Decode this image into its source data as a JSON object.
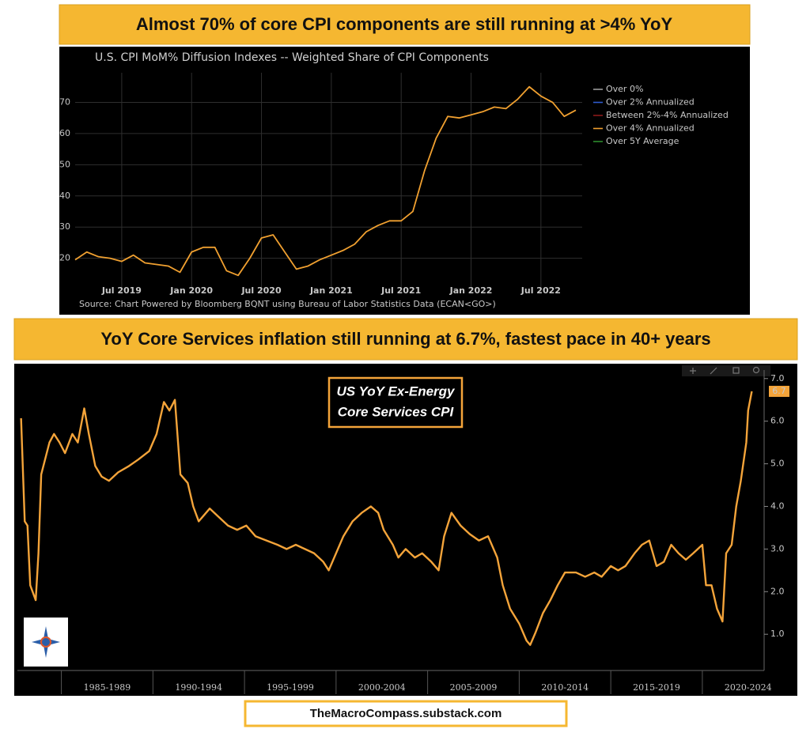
{
  "banners": [
    "Almost 70% of core CPI components are still running at >4% YoY",
    "YoY Core Services inflation still running at 6.7%, fastest pace in 40+ years"
  ],
  "footer": "TheMacroCompass.substack.com",
  "chart_data": [
    {
      "type": "line",
      "title": "U.S. CPI MoM% Diffusion Indexes -- Weighted Share of CPI Components",
      "source": "Source: Chart Powered by Bloomberg BQNT using Bureau of Labor Statistics Data   (ECAN<GO>)",
      "categories": [
        null,
        null,
        null,
        null,
        "Jul 2019",
        null,
        null,
        null,
        null,
        null,
        "Jan 2020",
        null,
        null,
        null,
        null,
        null,
        "Jul 2020",
        null,
        null,
        null,
        null,
        null,
        "Jan 2021",
        null,
        null,
        null,
        null,
        null,
        "Jul 2021",
        null,
        null,
        null,
        null,
        null,
        "Jan 2022",
        null,
        null,
        null,
        null,
        null,
        "Jul 2022",
        null,
        null,
        null
      ],
      "series": [
        {
          "name": "Over 0%",
          "color": "#9a9a9a"
        },
        {
          "name": "Over 2% Annualized",
          "color": "#2f5bd0"
        },
        {
          "name": "Between 2%-4% Annualized",
          "color": "#8b1a1a"
        },
        {
          "name": "Over 4% Annualized",
          "color": "#f0a030",
          "values": [
            19.5,
            22,
            20.5,
            20,
            19,
            21,
            18.5,
            18,
            17.5,
            15.5,
            22,
            23.5,
            23.5,
            16,
            14.5,
            20,
            26.5,
            27.5,
            22,
            16.5,
            17.5,
            19.5,
            21,
            22.5,
            24.5,
            28.5,
            30.5,
            32,
            32,
            35,
            48,
            58.5,
            65.5,
            65,
            66,
            67,
            68.5,
            68,
            71,
            75,
            72,
            70,
            65.5,
            67.5
          ]
        },
        {
          "name": "Over 5Y Average",
          "color": "#2e8b2e"
        }
      ],
      "ylim": [
        9,
        79.5
      ],
      "yticks": [
        20,
        30,
        40,
        50,
        60,
        70
      ],
      "grid": true,
      "legend": "right"
    },
    {
      "type": "line",
      "title": [
        "US YoY Ex-Energy",
        "Core Services CPI"
      ],
      "x": [
        1982.8,
        1983.0,
        1983.15,
        1983.3,
        1983.6,
        1983.75,
        1983.9,
        1984.35,
        1984.6,
        1984.9,
        1985.2,
        1985.6,
        1985.9,
        1986.25,
        1986.5,
        1986.85,
        1987.2,
        1987.6,
        1988.1,
        1988.7,
        1989.2,
        1989.8,
        1990.2,
        1990.6,
        1990.9,
        1991.2,
        1991.5,
        1991.9,
        1992.2,
        1992.5,
        1993.1,
        1993.6,
        1994.1,
        1994.6,
        1995.1,
        1995.6,
        1996.2,
        1996.8,
        1997.3,
        1997.8,
        1998.3,
        1998.8,
        1999.3,
        1999.6,
        2000.0,
        2000.4,
        2000.9,
        2001.4,
        2001.9,
        2002.3,
        2002.6,
        2003.1,
        2003.4,
        2003.8,
        2004.3,
        2004.7,
        2005.2,
        2005.6,
        2005.9,
        2006.3,
        2006.8,
        2007.3,
        2007.8,
        2008.3,
        2008.8,
        2009.1,
        2009.5,
        2010.0,
        2010.4,
        2010.6,
        2010.9,
        2011.3,
        2011.7,
        2012.1,
        2012.5,
        2013.1,
        2013.6,
        2014.1,
        2014.5,
        2015.0,
        2015.4,
        2015.8,
        2016.3,
        2016.7,
        2017.1,
        2017.5,
        2017.9,
        2018.3,
        2018.7,
        2019.1,
        2019.5,
        2020.0,
        2020.2,
        2020.5,
        2020.8,
        2021.1,
        2021.3,
        2021.6,
        2021.85,
        2022.1,
        2022.4,
        2022.5,
        2022.7
      ],
      "values": [
        6.07,
        3.65,
        3.55,
        2.15,
        1.8,
        2.9,
        4.75,
        5.5,
        5.7,
        5.5,
        5.25,
        5.7,
        5.5,
        6.3,
        5.7,
        4.95,
        4.7,
        4.6,
        4.8,
        4.95,
        5.1,
        5.3,
        5.7,
        6.45,
        6.25,
        6.5,
        4.75,
        4.55,
        4.0,
        3.65,
        3.95,
        3.75,
        3.55,
        3.45,
        3.55,
        3.3,
        3.2,
        3.1,
        3.0,
        3.1,
        3.0,
        2.9,
        2.7,
        2.5,
        2.9,
        3.3,
        3.65,
        3.85,
        4.0,
        3.85,
        3.45,
        3.1,
        2.8,
        3.0,
        2.8,
        2.9,
        2.7,
        2.5,
        3.3,
        3.85,
        3.55,
        3.35,
        3.2,
        3.3,
        2.8,
        2.15,
        1.6,
        1.25,
        0.85,
        0.75,
        1.05,
        1.5,
        1.8,
        2.15,
        2.45,
        2.45,
        2.35,
        2.45,
        2.35,
        2.6,
        2.5,
        2.6,
        2.9,
        3.1,
        3.2,
        2.6,
        2.7,
        3.1,
        2.9,
        2.75,
        2.9,
        3.1,
        2.15,
        2.15,
        1.6,
        1.3,
        2.9,
        3.1,
        4.0,
        4.6,
        5.5,
        6.25,
        6.7
      ],
      "color": "#f4a43a",
      "xlim": [
        1982.6,
        2023.2
      ],
      "xticks": [
        {
          "value": 1987.5,
          "label": "1985-1989"
        },
        {
          "value": 1992.5,
          "label": "1990-1994"
        },
        {
          "value": 1997.5,
          "label": "1995-1999"
        },
        {
          "value": 2002.5,
          "label": "2000-2004"
        },
        {
          "value": 2007.5,
          "label": "2005-2009"
        },
        {
          "value": 2012.5,
          "label": "2010-2014"
        },
        {
          "value": 2017.5,
          "label": "2015-2019"
        },
        {
          "value": 2022.5,
          "label": "2020-2024"
        }
      ],
      "ylim": [
        0.15,
        7.2
      ],
      "yticks": [
        {
          "value": 1.0,
          "label": "1.0"
        },
        {
          "value": 2.0,
          "label": "2.0"
        },
        {
          "value": 3.0,
          "label": "3.0"
        },
        {
          "value": 4.0,
          "label": "4.0"
        },
        {
          "value": 5.0,
          "label": "5.0"
        },
        {
          "value": 6.0,
          "label": "6.0"
        },
        {
          "value": 7.0,
          "label": "7.0"
        }
      ],
      "end_tag": {
        "value": 6.7,
        "label": "6.7"
      },
      "grid": false
    }
  ]
}
